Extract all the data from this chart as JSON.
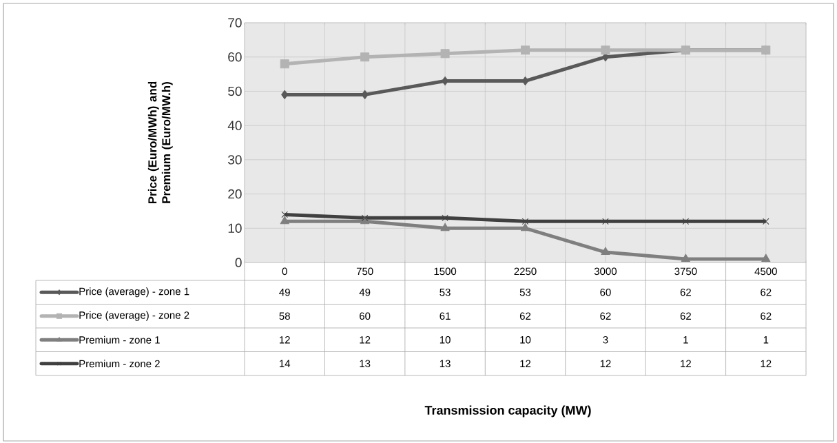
{
  "chart_data": {
    "type": "line",
    "ylabel": "Price (Euro/MWh) and Premium (Euro/MW.h)",
    "annotations": [
      "Transmission capacity (MW)"
    ],
    "categories": [
      "0",
      "750",
      "1500",
      "2250",
      "3000",
      "3750",
      "4500"
    ],
    "series": [
      {
        "name": "Price (average) - zone 1",
        "color": "#595959",
        "marker": "diamond",
        "values": [
          49,
          49,
          53,
          53,
          60,
          62,
          62
        ]
      },
      {
        "name": "Price (average) - zone 2",
        "color": "#b3b3b3",
        "marker": "square",
        "values": [
          58,
          60,
          61,
          62,
          62,
          62,
          62
        ]
      },
      {
        "name": "Premium - zone 1",
        "color": "#7f7f7f",
        "marker": "triangle",
        "values": [
          12,
          12,
          10,
          10,
          3,
          1,
          1
        ]
      },
      {
        "name": "Premium - zone 2",
        "color": "#404040",
        "marker": "cross",
        "values": [
          14,
          13,
          13,
          12,
          12,
          12,
          12
        ]
      }
    ],
    "ylim": [
      0,
      70
    ],
    "yticks": [
      0,
      10,
      20,
      30,
      40,
      50,
      60,
      70
    ],
    "grid": true,
    "data_labels": true,
    "legend": "bottom"
  }
}
